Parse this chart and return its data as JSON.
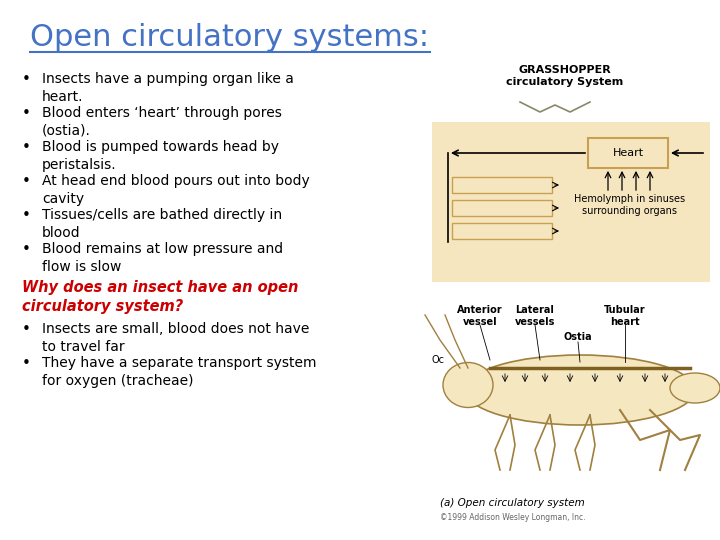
{
  "title": "Open circulatory systems:",
  "title_color": "#4472C4",
  "title_fontsize": 22,
  "bullet_color": "#000000",
  "bullet_fontsize": 10,
  "question_color": "#CC0000",
  "question_fontsize": 10.5,
  "background_color": "#FFFFFF",
  "bullets": [
    "Insects have a pumping organ like a\nheart.",
    "Blood enters ‘heart’ through pores\n(ostia).",
    "Blood is pumped towards head by\nperistalsis.",
    "At head end blood pours out into body\ncavity",
    "Tissues/cells are bathed directly in\nblood",
    "Blood remains at low pressure and\nflow is slow"
  ],
  "question": "Why does an insect have an open\ncirculatory system?",
  "answer_bullets": [
    "Insects are small, blood does not have\nto travel far",
    "They have a separate transport system\nfor oxygen (tracheae)"
  ],
  "image_label_bottom": "(a) Open circulatory system",
  "image_label_copyright": "©1999 Addison Wesley Longman, Inc.",
  "beige": "#F5E6C0",
  "beige_dark": "#C8A050",
  "brown": "#806020"
}
